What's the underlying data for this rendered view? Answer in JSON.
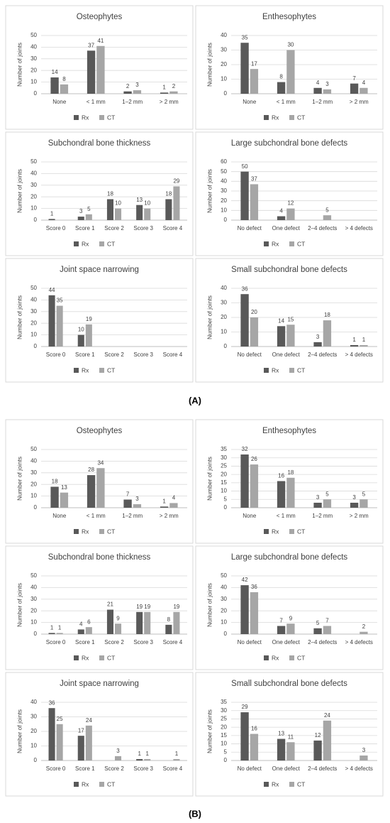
{
  "panel_labels": [
    "(A)",
    "(B)"
  ],
  "chart_data": [
    {
      "type": "bar",
      "title": "Osteophytes",
      "y_label": "Number of joints",
      "categories": [
        "None",
        "< 1 mm",
        "1–2 mm",
        "> 2 mm"
      ],
      "series": [
        {
          "name": "Rx",
          "color": "#595959",
          "values": [
            14,
            37,
            2,
            1
          ]
        },
        {
          "name": "CT",
          "color": "#a6a6a6",
          "values": [
            8,
            41,
            3,
            2
          ]
        }
      ],
      "ylim": [
        0,
        50
      ],
      "yticks": [
        0,
        10,
        20,
        30,
        40,
        50
      ],
      "grid": true,
      "legend": "bottom"
    },
    {
      "type": "bar",
      "title": "Enthesophytes",
      "y_label": "Number of joints",
      "categories": [
        "None",
        "< 1 mm",
        "1–2 mm",
        "> 2 mm"
      ],
      "series": [
        {
          "name": "Rx",
          "color": "#595959",
          "values": [
            35,
            8,
            4,
            7
          ]
        },
        {
          "name": "CT",
          "color": "#a6a6a6",
          "values": [
            17,
            30,
            3,
            4
          ]
        }
      ],
      "ylim": [
        0,
        40
      ],
      "yticks": [
        0,
        10,
        20,
        30,
        40
      ],
      "grid": true,
      "legend": "bottom"
    },
    {
      "type": "bar",
      "title": "Subchondral bone thickness",
      "y_label": "Number of joints",
      "categories": [
        "Score 0",
        "Score 1",
        "Score 2",
        "Score 3",
        "Score 4"
      ],
      "series": [
        {
          "name": "Rx",
          "color": "#595959",
          "values": [
            1,
            3,
            18,
            13,
            18
          ]
        },
        {
          "name": "CT",
          "color": "#a6a6a6",
          "values": [
            null,
            5,
            10,
            10,
            29
          ]
        }
      ],
      "ylim": [
        0,
        50
      ],
      "yticks": [
        0,
        10,
        20,
        30,
        40,
        50
      ],
      "grid": true,
      "legend": "bottom"
    },
    {
      "type": "bar",
      "title": "Large subchondral bone defects",
      "y_label": "Number of joints",
      "categories": [
        "No defect",
        "One defect",
        "2–4 defects",
        "> 4 defects"
      ],
      "series": [
        {
          "name": "Rx",
          "color": "#595959",
          "values": [
            50,
            4,
            null,
            null
          ]
        },
        {
          "name": "CT",
          "color": "#a6a6a6",
          "values": [
            37,
            12,
            5,
            null
          ]
        }
      ],
      "ylim": [
        0,
        60
      ],
      "yticks": [
        0,
        10,
        20,
        30,
        40,
        50,
        60
      ],
      "grid": true,
      "legend": "bottom"
    },
    {
      "type": "bar",
      "title": "Joint space narrowing",
      "y_label": "Number of joints",
      "categories": [
        "Score 0",
        "Score 1",
        "Score 2",
        "Score 3",
        "Score 4"
      ],
      "series": [
        {
          "name": "Rx",
          "color": "#595959",
          "values": [
            44,
            10,
            null,
            null,
            null
          ]
        },
        {
          "name": "CT",
          "color": "#a6a6a6",
          "values": [
            35,
            19,
            null,
            null,
            null
          ]
        }
      ],
      "ylim": [
        0,
        50
      ],
      "yticks": [
        0,
        10,
        20,
        30,
        40,
        50
      ],
      "grid": true,
      "legend": "bottom"
    },
    {
      "type": "bar",
      "title": "Small subchondral bone defects",
      "y_label": "Number of joints",
      "categories": [
        "No defect",
        "One defect",
        "2–4 defects",
        "> 4 defects"
      ],
      "series": [
        {
          "name": "Rx",
          "color": "#595959",
          "values": [
            36,
            14,
            3,
            1
          ]
        },
        {
          "name": "CT",
          "color": "#a6a6a6",
          "values": [
            20,
            15,
            18,
            1
          ]
        }
      ],
      "ylim": [
        0,
        40
      ],
      "yticks": [
        0,
        10,
        20,
        30,
        40
      ],
      "grid": true,
      "legend": "bottom"
    },
    {
      "type": "bar",
      "title": "Osteophytes",
      "y_label": "Number of joints",
      "categories": [
        "None",
        "< 1 mm",
        "1–2 mm",
        "> 2 mm"
      ],
      "series": [
        {
          "name": "Rx",
          "color": "#595959",
          "values": [
            18,
            28,
            7,
            1
          ]
        },
        {
          "name": "CT",
          "color": "#a6a6a6",
          "values": [
            13,
            34,
            3,
            4
          ]
        }
      ],
      "ylim": [
        0,
        50
      ],
      "yticks": [
        0,
        10,
        20,
        30,
        40,
        50
      ],
      "grid": true,
      "legend": "bottom"
    },
    {
      "type": "bar",
      "title": "Enthesophytes",
      "y_label": "Number of joints",
      "categories": [
        "None",
        "< 1 mm",
        "1–2 mm",
        "> 2 mm"
      ],
      "series": [
        {
          "name": "Rx",
          "color": "#595959",
          "values": [
            32,
            16,
            3,
            3
          ]
        },
        {
          "name": "CT",
          "color": "#a6a6a6",
          "values": [
            26,
            18,
            5,
            5
          ]
        }
      ],
      "ylim": [
        0,
        35
      ],
      "yticks": [
        0,
        5,
        10,
        15,
        20,
        25,
        30,
        35
      ],
      "grid": true,
      "legend": "bottom"
    },
    {
      "type": "bar",
      "title": "Subchondral bone thickness",
      "y_label": "Number of joints",
      "categories": [
        "Score 0",
        "Score 1",
        "Score 2",
        "Score 3",
        "Score 4"
      ],
      "series": [
        {
          "name": "Rx",
          "color": "#595959",
          "values": [
            1,
            4,
            21,
            19,
            8
          ]
        },
        {
          "name": "CT",
          "color": "#a6a6a6",
          "values": [
            1,
            6,
            9,
            19,
            19
          ]
        }
      ],
      "ylim": [
        0,
        50
      ],
      "yticks": [
        0,
        10,
        20,
        30,
        40,
        50
      ],
      "grid": true,
      "legend": "bottom"
    },
    {
      "type": "bar",
      "title": "Large subchondral bone defects",
      "y_label": "Number of joints",
      "categories": [
        "No defect",
        "One defect",
        "2–4 defects",
        "> 4 defects"
      ],
      "series": [
        {
          "name": "Rx",
          "color": "#595959",
          "values": [
            42,
            7,
            5,
            null
          ]
        },
        {
          "name": "CT",
          "color": "#a6a6a6",
          "values": [
            36,
            9,
            7,
            2
          ]
        }
      ],
      "ylim": [
        0,
        50
      ],
      "yticks": [
        0,
        10,
        20,
        30,
        40,
        50
      ],
      "grid": true,
      "legend": "bottom"
    },
    {
      "type": "bar",
      "title": "Joint space narrowing",
      "y_label": "Number of joints",
      "categories": [
        "Score 0",
        "Score 1",
        "Score 2",
        "Score 3",
        "Score 4"
      ],
      "series": [
        {
          "name": "Rx",
          "color": "#595959",
          "values": [
            36,
            17,
            null,
            1,
            null
          ]
        },
        {
          "name": "CT",
          "color": "#a6a6a6",
          "values": [
            25,
            24,
            3,
            1,
            1
          ]
        }
      ],
      "ylim": [
        0,
        40
      ],
      "yticks": [
        0,
        10,
        20,
        30,
        40
      ],
      "grid": true,
      "legend": "bottom"
    },
    {
      "type": "bar",
      "title": "Small subchondral bone defects",
      "y_label": "Number of joints",
      "categories": [
        "No defect",
        "One defect",
        "2–4 defects",
        "> 4 defects"
      ],
      "series": [
        {
          "name": "Rx",
          "color": "#595959",
          "values": [
            29,
            13,
            12,
            null
          ]
        },
        {
          "name": "CT",
          "color": "#a6a6a6",
          "values": [
            16,
            11,
            24,
            3
          ]
        }
      ],
      "ylim": [
        0,
        35
      ],
      "yticks": [
        0,
        5,
        10,
        15,
        20,
        25,
        30,
        35
      ],
      "grid": true,
      "legend": "bottom"
    }
  ]
}
